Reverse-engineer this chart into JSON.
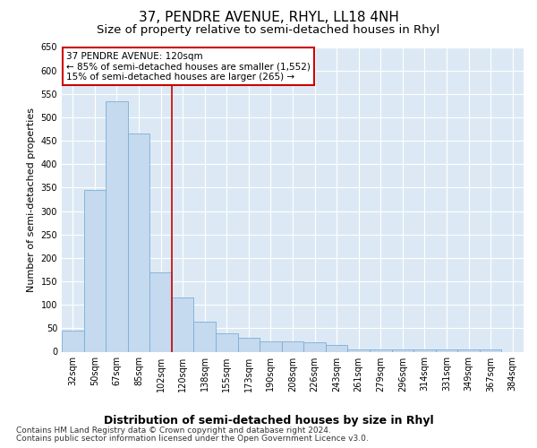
{
  "title": "37, PENDRE AVENUE, RHYL, LL18 4NH",
  "subtitle": "Size of property relative to semi-detached houses in Rhyl",
  "xlabel": "Distribution of semi-detached houses by size in Rhyl",
  "ylabel": "Number of semi-detached properties",
  "categories": [
    "32sqm",
    "50sqm",
    "67sqm",
    "85sqm",
    "102sqm",
    "120sqm",
    "138sqm",
    "155sqm",
    "173sqm",
    "190sqm",
    "208sqm",
    "226sqm",
    "243sqm",
    "261sqm",
    "279sqm",
    "296sqm",
    "314sqm",
    "331sqm",
    "349sqm",
    "367sqm",
    "384sqm"
  ],
  "values": [
    45,
    345,
    535,
    465,
    170,
    115,
    65,
    40,
    30,
    22,
    22,
    20,
    15,
    5,
    5,
    5,
    5,
    5,
    5,
    5,
    0
  ],
  "bar_color": "#c5d9ef",
  "bar_edge_color": "#7aafd4",
  "red_line_index": 5,
  "ylim": [
    0,
    650
  ],
  "yticks": [
    0,
    50,
    100,
    150,
    200,
    250,
    300,
    350,
    400,
    450,
    500,
    550,
    600,
    650
  ],
  "annotation_title": "37 PENDRE AVENUE: 120sqm",
  "annotation_line1": "← 85% of semi-detached houses are smaller (1,552)",
  "annotation_line2": "15% of semi-detached houses are larger (265) →",
  "annotation_box_color": "#ffffff",
  "annotation_box_edge": "#cc0000",
  "red_line_color": "#cc0000",
  "footer1": "Contains HM Land Registry data © Crown copyright and database right 2024.",
  "footer2": "Contains public sector information licensed under the Open Government Licence v3.0.",
  "plot_background": "#dce9f5",
  "title_fontsize": 11,
  "subtitle_fontsize": 9.5,
  "ylabel_fontsize": 8,
  "xlabel_fontsize": 9,
  "tick_fontsize": 7,
  "annotation_fontsize": 7.5,
  "footer_fontsize": 6.5
}
